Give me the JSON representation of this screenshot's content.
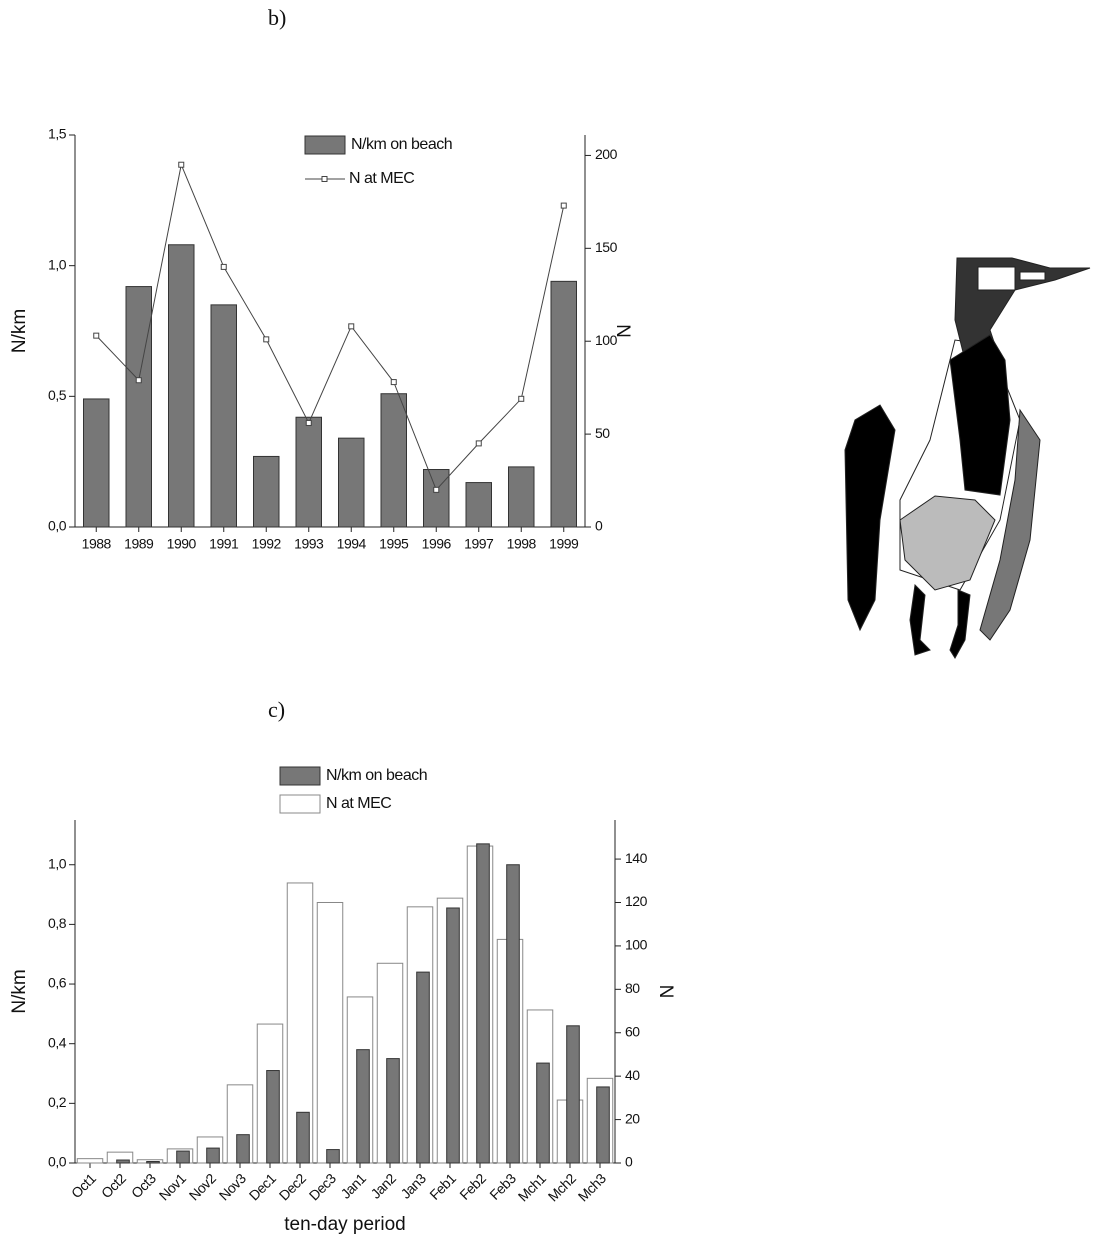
{
  "chart_data": [
    {
      "type": "bar",
      "panel_label": "b)",
      "ylabel": "N/km",
      "y2label": "N",
      "categories": [
        "1988",
        "1989",
        "1990",
        "1991",
        "1992",
        "1993",
        "1994",
        "1995",
        "1996",
        "1997",
        "1998",
        "1999"
      ],
      "series": [
        {
          "name": "N/km on beach",
          "type": "bar",
          "color": "#777777",
          "values": [
            0.49,
            0.92,
            1.08,
            0.85,
            0.27,
            0.42,
            0.34,
            0.51,
            0.22,
            0.17,
            0.23,
            0.94
          ]
        },
        {
          "name": "N at MEC",
          "type": "line",
          "axis": "y2",
          "color": "#444444",
          "values": [
            103,
            79,
            195,
            140,
            101,
            56,
            108,
            78,
            20,
            45,
            69,
            173
          ]
        }
      ],
      "ylim": [
        0,
        1.5
      ],
      "yticks": [
        {
          "value": 0,
          "label": "0,0"
        },
        {
          "value": 0.5,
          "label": "0,5"
        },
        {
          "value": 1,
          "label": "1,0"
        },
        {
          "value": 1.5,
          "label": "1,5"
        }
      ],
      "y2lim": [
        0,
        211
      ],
      "y2ticks": [
        0,
        50,
        100,
        150,
        200
      ]
    },
    {
      "type": "bar",
      "panel_label": "c)",
      "ylabel": "N/km",
      "y2label": "N",
      "xlabel": "ten-day period",
      "categories": [
        "Oct1",
        "Oct2",
        "Oct3",
        "Nov1",
        "Nov2",
        "Nov3",
        "Dec1",
        "Dec2",
        "Dec3",
        "Jan1",
        "Jan2",
        "Jan3",
        "Feb1",
        "Feb2",
        "Feb3",
        "Mch1",
        "Mch2",
        "Mch3"
      ],
      "series": [
        {
          "name": "N/km on beach",
          "type": "bar",
          "color": "#777777",
          "values": [
            0,
            0.01,
            0.005,
            0.04,
            0.05,
            0.095,
            0.31,
            0.17,
            0.045,
            0.38,
            0.35,
            0.64,
            0.855,
            1.07,
            1.0,
            0.335,
            0.46,
            0.255
          ]
        },
        {
          "name": "N at MEC",
          "type": "bar",
          "axis": "y2",
          "color": "#ffffff",
          "values": [
            2,
            5,
            1.5,
            6.5,
            12,
            36,
            64,
            129,
            120,
            76.5,
            92,
            118,
            122,
            146,
            103,
            70.5,
            29,
            39
          ]
        }
      ],
      "ylim": [
        0,
        1.15
      ],
      "yticks": [
        {
          "value": 0,
          "label": "0,0"
        },
        {
          "value": 0.2,
          "label": "0,2"
        },
        {
          "value": 0.4,
          "label": "0,4"
        },
        {
          "value": 0.6,
          "label": "0,6"
        },
        {
          "value": 0.8,
          "label": "0,8"
        },
        {
          "value": 1,
          "label": "1,0"
        }
      ],
      "y2lim": [
        0,
        158
      ],
      "y2ticks": [
        0,
        20,
        40,
        60,
        80,
        100,
        120,
        140
      ]
    }
  ]
}
